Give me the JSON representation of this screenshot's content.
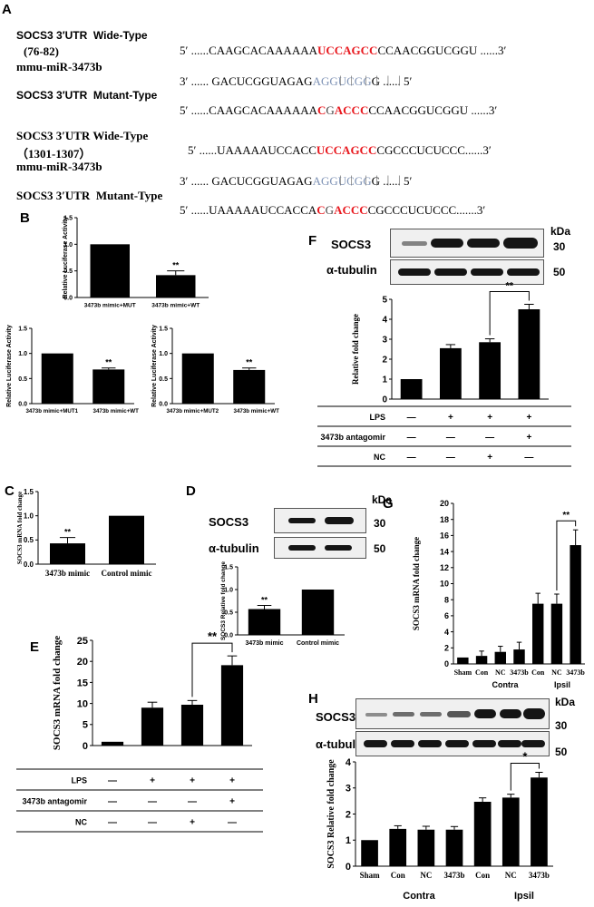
{
  "panel_a": {
    "letter": "A",
    "block1": {
      "wt_label": "SOCS3 3′UTR  Wide-Type",
      "range": "(76-82)",
      "wt_seq": [
        "5′ ......CAAGCACAAAAAA",
        "UCCAGCC",
        "CCAACGGUCGGU ......3′"
      ],
      "mir_label": "mmu-miR-3473b",
      "mir_seq": [
        "3′ ...... GACUCGGUAGAG",
        "AGGUCGG",
        "G ...... 5′"
      ],
      "pairs": "|   |    |   |   |   |",
      "mut_label": "SOCS3 3′UTR  Mutant-Type",
      "mut_seq": [
        "5′ ......CAAGCACAAAAAA",
        "C",
        "G",
        "A",
        "CCC",
        "CCAACGGUCGGU ......3′"
      ]
    },
    "block2": {
      "wt_label": "SOCS3 3′UTR Wide-Type",
      "range": "（1301-1307）",
      "wt_seq": [
        "5′ ......UAAAAAUCCACC",
        "UCCAGCC",
        "CGCCCUCUCCC......3′"
      ],
      "mir_label": "mmu-miR-3473b",
      "mir_seq": [
        "3′ ...... GACUCGGUAGAG",
        "AGGUCGG",
        "G ...... 5′"
      ],
      "pairs": "|   |    |   |   |   |",
      "mut_label": "SOCS3 3′UTR  Mutant-Type",
      "mut_seq": [
        "5′ ......UAAAAAUCCACCA",
        "C",
        "G",
        "A",
        "CCC",
        "CGCCCUCUCCC.......3′"
      ]
    }
  },
  "panel_b": {
    "letter": "B",
    "chart1": {
      "ylabel": "Relative Luciferase Activity",
      "categories": [
        "3473b mimic+MUT",
        "3473b mimic+WT"
      ],
      "values": [
        1.0,
        0.42
      ],
      "errors": [
        0,
        0.08
      ],
      "sig": "**",
      "ticks": [
        "0.0",
        "0.5",
        "1.0",
        "1.5"
      ]
    },
    "chart2": {
      "ylabel": "Relative Luciferase Activity",
      "categories": [
        "3473b mimic+MUT1",
        "3473b mimic+WT"
      ],
      "values": [
        1.0,
        0.68
      ],
      "errors": [
        0,
        0.03
      ],
      "sig": "**",
      "ticks": [
        "0.0",
        "0.5",
        "1.0",
        "1.5"
      ]
    },
    "chart3": {
      "ylabel": "Relative Luciferase Activity",
      "categories": [
        "3473b mimic+MUT2",
        "3473b mimic+WT"
      ],
      "values": [
        1.0,
        0.67
      ],
      "errors": [
        0,
        0.04
      ],
      "sig": "**",
      "ticks": [
        "0.0",
        "0.5",
        "1.0",
        "1.5"
      ]
    }
  },
  "panel_c": {
    "letter": "C",
    "ylabel": "SOCS3 mRNA fold change",
    "categories": [
      "3473b mimic",
      "Control mimic"
    ],
    "values": [
      0.43,
      1.0
    ],
    "errors": [
      0.12,
      0
    ],
    "sig": "**",
    "ticks": [
      "0.0",
      "0.5",
      "1.0",
      "1.5"
    ]
  },
  "panel_d": {
    "letter": "D",
    "kda": "kDa",
    "blot_labels": [
      "SOCS3",
      "α-tubulin"
    ],
    "blot_kda": [
      "30",
      "50"
    ],
    "ylabel": "SOCS3 Relative fold change",
    "categories": [
      "3473b mimic",
      "Control mimic"
    ],
    "values": [
      0.57,
      1.0
    ],
    "errors": [
      0.08,
      0
    ],
    "sig": "**",
    "ticks": [
      "0.0",
      "0.5",
      "1.0",
      "1.5"
    ]
  },
  "panel_e": {
    "letter": "E",
    "ylabel": "SOCS3 mRNA fold change",
    "values": [
      0.9,
      9.0,
      9.7,
      19.1
    ],
    "errors": [
      0,
      1.3,
      1.0,
      2.2
    ],
    "sig": "**",
    "ticks": [
      "0",
      "5",
      "10",
      "15",
      "20",
      "25"
    ],
    "rows": [
      {
        "label": "LPS",
        "marks": [
          "—",
          "+",
          "+",
          "+"
        ]
      },
      {
        "label": "3473b antagomir",
        "marks": [
          "—",
          "—",
          "—",
          "+"
        ]
      },
      {
        "label": "NC",
        "marks": [
          "—",
          "—",
          "+",
          "—"
        ]
      }
    ]
  },
  "panel_f": {
    "letter": "F",
    "kda": "kDa",
    "blot_labels": [
      "SOCS3",
      "α-tubulin"
    ],
    "blot_kda": [
      "30",
      "50"
    ],
    "ylabel": "Relative fold change",
    "values": [
      1.0,
      2.55,
      2.85,
      4.5
    ],
    "errors": [
      0,
      0.18,
      0.17,
      0.25
    ],
    "sig": "**",
    "ticks": [
      "0",
      "1",
      "2",
      "3",
      "4",
      "5"
    ],
    "rows": [
      {
        "label": "LPS",
        "marks": [
          "—",
          "+",
          "+",
          "+"
        ]
      },
      {
        "label": "3473b antagomir",
        "marks": [
          "—",
          "—",
          "—",
          "+"
        ]
      },
      {
        "label": "NC",
        "marks": [
          "—",
          "—",
          "+",
          "—"
        ]
      }
    ]
  },
  "panel_g": {
    "letter": "G",
    "ylabel": "SOCS3 mRNA fold change",
    "categories": [
      "Sham",
      "Con",
      "NC",
      "3473b",
      "Con",
      "NC",
      "3473b"
    ],
    "values": [
      0.8,
      1.0,
      1.5,
      1.8,
      7.5,
      7.5,
      14.8
    ],
    "errors": [
      0,
      0.6,
      0.7,
      0.9,
      1.3,
      1.2,
      1.9
    ],
    "sig": "**",
    "groups": [
      "Contra",
      "Ipsil"
    ],
    "ticks": [
      "0",
      "2",
      "4",
      "6",
      "8",
      "10",
      "12",
      "14",
      "16",
      "18",
      "20"
    ]
  },
  "panel_h": {
    "letter": "H",
    "kda": "kDa",
    "blot_labels": [
      "SOCS3",
      "α-tubulin"
    ],
    "blot_kda": [
      "30",
      "50"
    ],
    "ylabel": "SOCS3 Relative fold change",
    "categories": [
      "Sham",
      "Con",
      "NC",
      "3473b",
      "Con",
      "NC",
      "3473b"
    ],
    "values": [
      1.0,
      1.43,
      1.4,
      1.4,
      2.47,
      2.63,
      3.4
    ],
    "errors": [
      0,
      0.12,
      0.13,
      0.12,
      0.15,
      0.13,
      0.2
    ],
    "sig": "*",
    "groups": [
      "Contra",
      "Ipsil"
    ],
    "ticks": [
      "0",
      "1",
      "2",
      "3",
      "4"
    ]
  }
}
